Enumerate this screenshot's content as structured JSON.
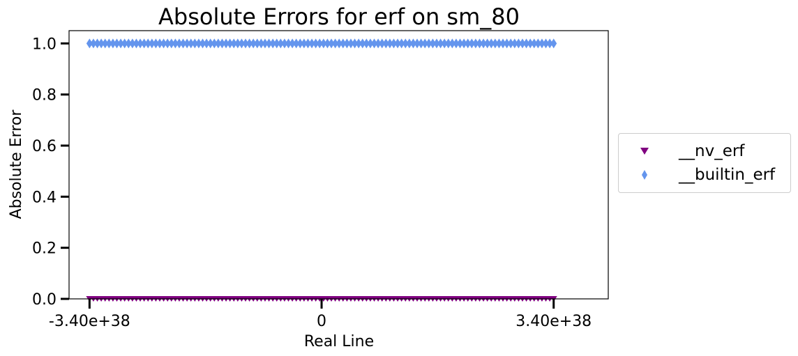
{
  "chart_data": {
    "type": "scatter",
    "title": "Absolute Errors for erf on sm_80",
    "xlabel": "Real Line",
    "ylabel": "Absolute Error",
    "xlim": [
      -3.7e+38,
      4.2e+38
    ],
    "ylim": [
      0.0,
      1.05
    ],
    "xticks": [
      -3.4e+38,
      0,
      3.4e+38
    ],
    "xtick_labels": [
      "-3.40e+38",
      "0",
      "3.40e+38"
    ],
    "yticks": [
      0.0,
      0.2,
      0.4,
      0.6,
      0.8,
      1.0
    ],
    "ytick_labels": [
      "0.0",
      "0.2",
      "0.4",
      "0.6",
      "0.8",
      "1.0"
    ],
    "grid": false,
    "legend_position": "center-right outside",
    "series": [
      {
        "name": "__nv_erf",
        "marker": "triangle-down",
        "color": "#800080",
        "x_range": [
          -3.4e+38,
          3.4e+38
        ],
        "y_value": 0.0
      },
      {
        "name": "__builtin_erf",
        "marker": "diamond",
        "color": "#6495ED",
        "x_range": [
          -3.4e+38,
          3.4e+38
        ],
        "y_value": 1.0
      }
    ]
  }
}
